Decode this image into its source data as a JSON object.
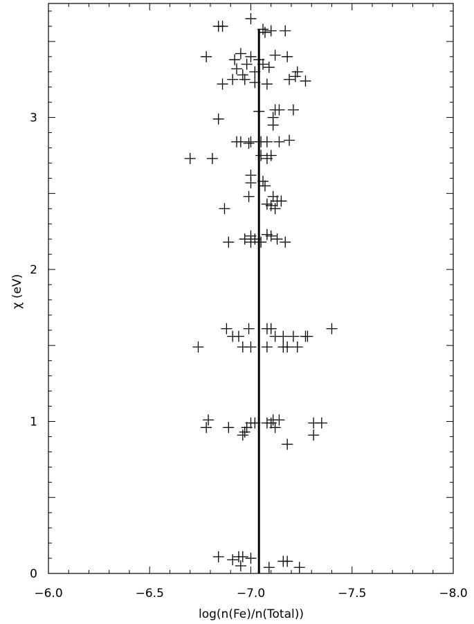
{
  "chart_data": {
    "type": "scatter",
    "xlabel": "log(n(Fe)/n(Total))",
    "ylabel": "χ (eV)",
    "xlim": [
      -6.0,
      -8.0
    ],
    "ylim": [
      0,
      3.75
    ],
    "x_ticks": [
      -6.0,
      -6.5,
      -7.0,
      -7.5,
      -8.0
    ],
    "x_tick_labels": [
      "−6.0",
      "−6.5",
      "−7.0",
      "−7.5",
      "−8.0"
    ],
    "y_ticks": [
      0,
      1,
      2,
      3
    ],
    "y_tick_labels": [
      "0",
      "1",
      "2",
      "3"
    ],
    "mean_line_x": -7.04,
    "mean_line_yrange": [
      0,
      3.58
    ],
    "marker": "plus",
    "points": [
      [
        -6.84,
        3.6
      ],
      [
        -6.86,
        3.6
      ],
      [
        -7.0,
        3.65
      ],
      [
        -7.06,
        3.58
      ],
      [
        -7.07,
        3.56
      ],
      [
        -7.1,
        3.57
      ],
      [
        -7.17,
        3.57
      ],
      [
        -6.78,
        3.4
      ],
      [
        -6.92,
        3.38
      ],
      [
        -6.95,
        3.42
      ],
      [
        -6.98,
        3.35
      ],
      [
        -7.0,
        3.4
      ],
      [
        -7.04,
        3.38
      ],
      [
        -7.06,
        3.35
      ],
      [
        -7.09,
        3.33
      ],
      [
        -7.12,
        3.41
      ],
      [
        -7.18,
        3.4
      ],
      [
        -6.93,
        3.32
      ],
      [
        -6.96,
        3.28
      ],
      [
        -6.97,
        3.25
      ],
      [
        -7.02,
        3.3
      ],
      [
        -6.91,
        3.25
      ],
      [
        -6.86,
        3.22
      ],
      [
        -7.02,
        3.23
      ],
      [
        -7.08,
        3.22
      ],
      [
        -7.19,
        3.25
      ],
      [
        -7.22,
        3.27
      ],
      [
        -7.23,
        3.3
      ],
      [
        -7.27,
        3.24
      ],
      [
        -6.84,
        2.99
      ],
      [
        -7.04,
        3.04
      ],
      [
        -7.12,
        3.05
      ],
      [
        -7.14,
        3.05
      ],
      [
        -7.11,
        3.0
      ],
      [
        -7.11,
        2.95
      ],
      [
        -7.21,
        3.05
      ],
      [
        -6.93,
        2.84
      ],
      [
        -6.95,
        2.84
      ],
      [
        -7.0,
        2.84
      ],
      [
        -7.05,
        2.84
      ],
      [
        -7.08,
        2.84
      ],
      [
        -7.14,
        2.84
      ],
      [
        -7.19,
        2.85
      ],
      [
        -6.99,
        2.83
      ],
      [
        -6.7,
        2.73
      ],
      [
        -6.81,
        2.73
      ],
      [
        -7.05,
        2.75
      ],
      [
        -7.08,
        2.73
      ],
      [
        -7.1,
        2.75
      ],
      [
        -7.0,
        2.62
      ],
      [
        -7.0,
        2.57
      ],
      [
        -7.06,
        2.58
      ],
      [
        -7.07,
        2.55
      ],
      [
        -6.99,
        2.48
      ],
      [
        -7.11,
        2.48
      ],
      [
        -7.13,
        2.45
      ],
      [
        -7.15,
        2.45
      ],
      [
        -7.1,
        2.42
      ],
      [
        -7.08,
        2.43
      ],
      [
        -7.12,
        2.4
      ],
      [
        -6.87,
        2.4
      ],
      [
        -6.89,
        2.18
      ],
      [
        -6.97,
        2.2
      ],
      [
        -7.0,
        2.22
      ],
      [
        -7.02,
        2.2
      ],
      [
        -7.05,
        2.18
      ],
      [
        -7.08,
        2.23
      ],
      [
        -7.1,
        2.22
      ],
      [
        -7.13,
        2.2
      ],
      [
        -7.17,
        2.18
      ],
      [
        -7.0,
        2.18
      ],
      [
        -6.88,
        1.61
      ],
      [
        -6.91,
        1.56
      ],
      [
        -6.94,
        1.56
      ],
      [
        -6.99,
        1.61
      ],
      [
        -7.08,
        1.61
      ],
      [
        -7.1,
        1.61
      ],
      [
        -7.12,
        1.56
      ],
      [
        -7.16,
        1.56
      ],
      [
        -7.21,
        1.56
      ],
      [
        -7.27,
        1.56
      ],
      [
        -7.28,
        1.56
      ],
      [
        -7.4,
        1.61
      ],
      [
        -6.74,
        1.49
      ],
      [
        -6.96,
        1.49
      ],
      [
        -7.0,
        1.49
      ],
      [
        -7.08,
        1.49
      ],
      [
        -7.16,
        1.49
      ],
      [
        -7.18,
        1.49
      ],
      [
        -7.23,
        1.49
      ],
      [
        -6.79,
        1.01
      ],
      [
        -6.78,
        0.96
      ],
      [
        -6.89,
        0.96
      ],
      [
        -6.97,
        0.93
      ],
      [
        -6.98,
        0.96
      ],
      [
        -7.0,
        0.99
      ],
      [
        -7.02,
        0.99
      ],
      [
        -7.08,
        0.99
      ],
      [
        -7.1,
        0.99
      ],
      [
        -7.11,
        1.01
      ],
      [
        -7.14,
        1.01
      ],
      [
        -7.12,
        0.96
      ],
      [
        -7.31,
        0.99
      ],
      [
        -7.35,
        0.99
      ],
      [
        -7.31,
        0.91
      ],
      [
        -7.18,
        0.85
      ],
      [
        -6.96,
        0.91
      ],
      [
        -6.84,
        0.11
      ],
      [
        -6.91,
        0.09
      ],
      [
        -6.94,
        0.11
      ],
      [
        -6.96,
        0.11
      ],
      [
        -7.0,
        0.1
      ],
      [
        -6.95,
        0.05
      ],
      [
        -7.09,
        0.04
      ],
      [
        -7.16,
        0.08
      ],
      [
        -7.18,
        0.08
      ],
      [
        -7.24,
        0.04
      ]
    ]
  }
}
